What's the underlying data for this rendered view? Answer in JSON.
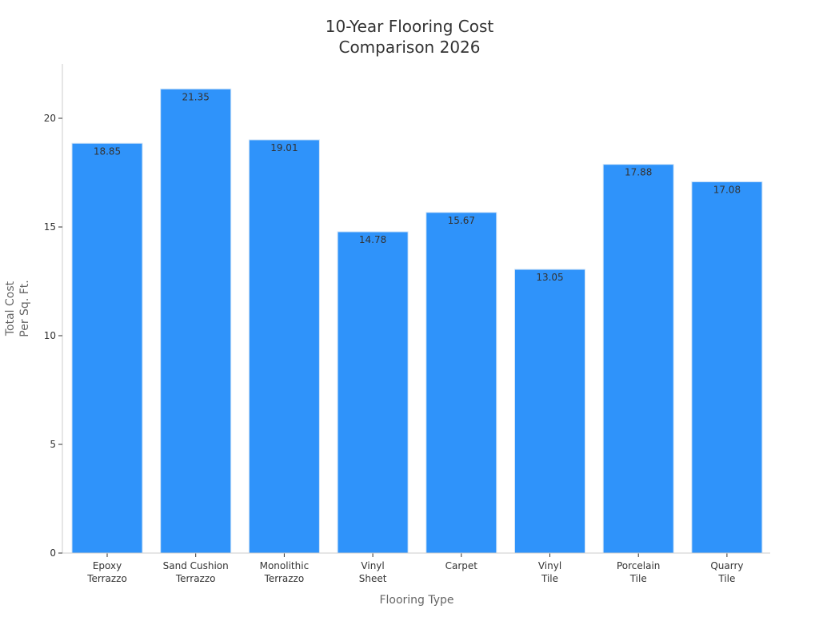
{
  "chart_data": {
    "type": "bar",
    "title_lines": [
      "10-Year Flooring Cost",
      "Comparison 2026"
    ],
    "xlabel": "Flooring Type",
    "ylabel_lines": [
      "Total Cost",
      "Per Sq. Ft."
    ],
    "categories": [
      [
        "Epoxy",
        "Terrazzo"
      ],
      [
        "Sand Cushion",
        "Terrazzo"
      ],
      [
        "Monolithic",
        "Terrazzo"
      ],
      [
        "Vinyl",
        "Sheet"
      ],
      [
        "Carpet"
      ],
      [
        "Vinyl",
        "Tile"
      ],
      [
        "Porcelain",
        "Tile"
      ],
      [
        "Quarry",
        "Tile"
      ]
    ],
    "values": [
      18.85,
      21.35,
      19.01,
      14.78,
      15.67,
      13.05,
      17.88,
      17.08
    ],
    "value_labels": [
      "18.85",
      "21.35",
      "19.01",
      "14.78",
      "15.67",
      "13.05",
      "17.88",
      "17.08"
    ],
    "ylim": [
      0,
      22.5
    ],
    "yticks": [
      0,
      5,
      10,
      15,
      20
    ],
    "grid": false,
    "colors": {
      "bar": "#2f93fa",
      "bar_edge": "#cfe3f7"
    }
  }
}
